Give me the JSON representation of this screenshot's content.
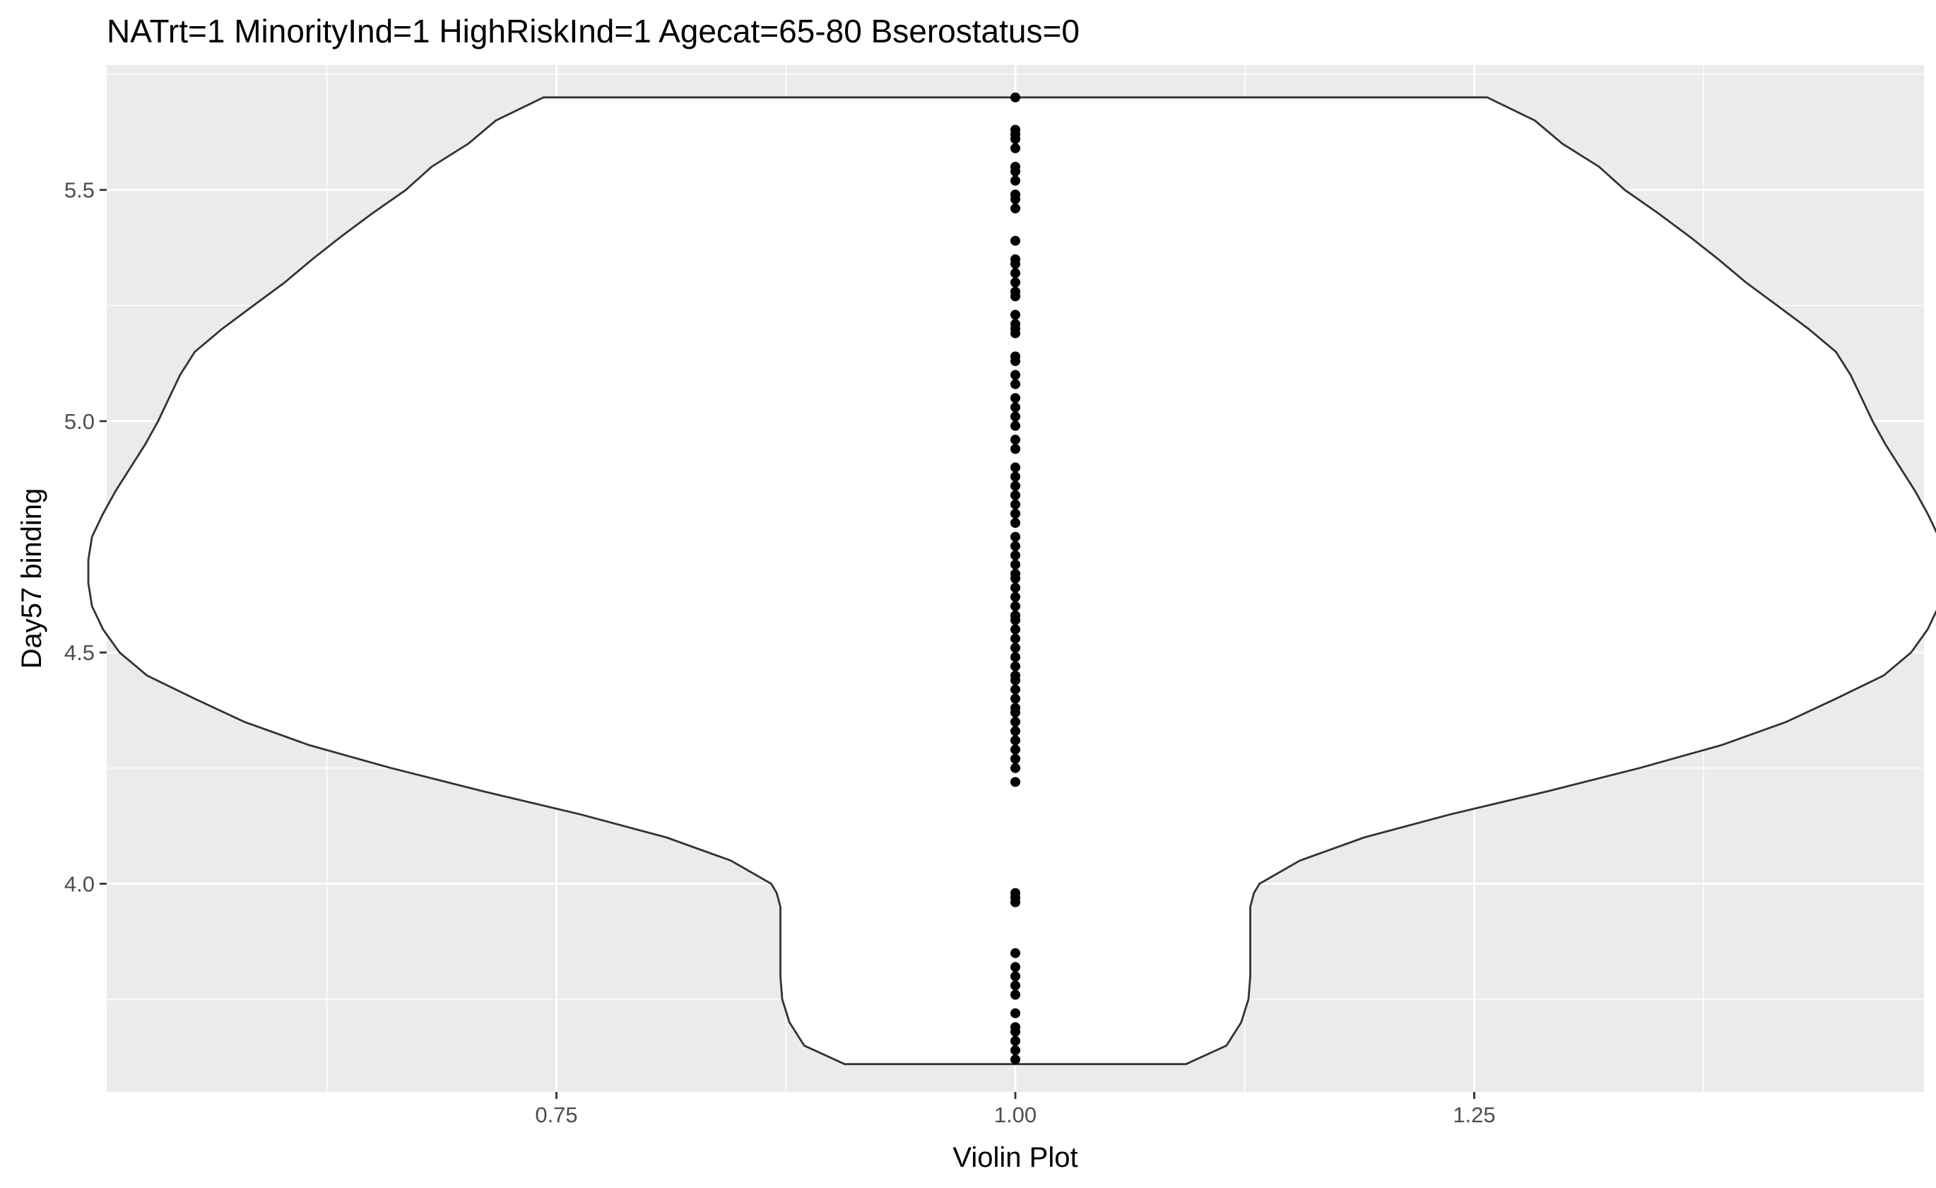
{
  "chart_data": {
    "type": "violin",
    "title": "NATrt=1 MinorityInd=1 HighRiskInd=1 Agecat=65-80 Bserostatus=0",
    "xlabel": "Violin Plot",
    "ylabel": "Day57 binding",
    "x_ticks": [
      0.75,
      1.0,
      1.25
    ],
    "x_tick_labels": [
      "0.75",
      "1.00",
      "1.25"
    ],
    "y_ticks": [
      4.0,
      4.5,
      5.0,
      5.5
    ],
    "y_tick_labels": [
      "4.0",
      "4.5",
      "5.0",
      "5.5"
    ],
    "xlim": [
      0.505,
      1.495
    ],
    "ylim": [
      3.55,
      5.77
    ],
    "grid": true,
    "panel_color": "#ebebeb",
    "grid_color": "#ffffff",
    "violin_fill": "#ffffff",
    "violin_stroke": "#333333",
    "point_color": "#000000",
    "violin": {
      "center": 1.0,
      "density_halfwidth": [
        [
          3.61,
          0.093
        ],
        [
          3.65,
          0.115
        ],
        [
          3.7,
          0.123
        ],
        [
          3.75,
          0.127
        ],
        [
          3.8,
          0.128
        ],
        [
          3.85,
          0.128
        ],
        [
          3.9,
          0.128
        ],
        [
          3.95,
          0.128
        ],
        [
          3.98,
          0.13
        ],
        [
          4.0,
          0.133
        ],
        [
          4.05,
          0.155
        ],
        [
          4.1,
          0.19
        ],
        [
          4.15,
          0.237
        ],
        [
          4.2,
          0.29
        ],
        [
          4.25,
          0.34
        ],
        [
          4.3,
          0.385
        ],
        [
          4.35,
          0.42
        ],
        [
          4.4,
          0.447
        ],
        [
          4.45,
          0.473
        ],
        [
          4.5,
          0.488
        ],
        [
          4.55,
          0.497
        ],
        [
          4.6,
          0.503
        ],
        [
          4.65,
          0.505
        ],
        [
          4.7,
          0.505
        ],
        [
          4.75,
          0.503
        ],
        [
          4.8,
          0.497
        ],
        [
          4.85,
          0.49
        ],
        [
          4.9,
          0.482
        ],
        [
          4.95,
          0.474
        ],
        [
          5.0,
          0.467
        ],
        [
          5.05,
          0.461
        ],
        [
          5.1,
          0.455
        ],
        [
          5.15,
          0.447
        ],
        [
          5.2,
          0.432
        ],
        [
          5.25,
          0.415
        ],
        [
          5.3,
          0.398
        ],
        [
          5.35,
          0.383
        ],
        [
          5.4,
          0.367
        ],
        [
          5.45,
          0.35
        ],
        [
          5.5,
          0.332
        ],
        [
          5.55,
          0.318
        ],
        [
          5.6,
          0.298
        ],
        [
          5.65,
          0.283
        ],
        [
          5.7,
          0.257
        ]
      ]
    },
    "points": {
      "x": 1.0,
      "y": [
        3.62,
        3.64,
        3.66,
        3.68,
        3.69,
        3.72,
        3.76,
        3.78,
        3.8,
        3.82,
        3.85,
        3.96,
        3.97,
        3.98,
        4.22,
        4.25,
        4.27,
        4.29,
        4.31,
        4.33,
        4.35,
        4.37,
        4.38,
        4.4,
        4.42,
        4.44,
        4.45,
        4.47,
        4.49,
        4.51,
        4.53,
        4.55,
        4.57,
        4.58,
        4.6,
        4.62,
        4.64,
        4.66,
        4.67,
        4.69,
        4.71,
        4.73,
        4.75,
        4.78,
        4.8,
        4.82,
        4.84,
        4.86,
        4.88,
        4.9,
        4.94,
        4.96,
        4.99,
        5.01,
        5.03,
        5.05,
        5.08,
        5.1,
        5.13,
        5.14,
        5.19,
        5.2,
        5.21,
        5.23,
        5.27,
        5.28,
        5.3,
        5.32,
        5.34,
        5.35,
        5.39,
        5.46,
        5.48,
        5.49,
        5.52,
        5.54,
        5.55,
        5.59,
        5.61,
        5.62,
        5.63,
        5.7
      ]
    }
  }
}
